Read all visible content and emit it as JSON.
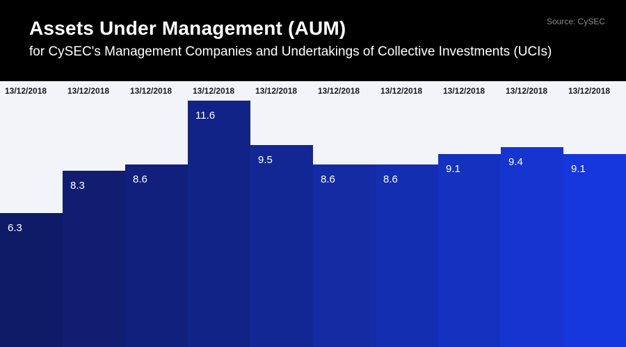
{
  "header": {
    "title": "Assets Under Management (AUM)",
    "subtitle": "for CySEC's Management Companies and Undertakings of Collective Investments (UCIs)",
    "source": "Source: CySEC"
  },
  "colors": {
    "header_bg": "#000000",
    "plot_bg": "#f3f4fa",
    "date_label": "#17171f",
    "value_label": "#ffffff"
  },
  "chart_data": {
    "type": "bar",
    "title": "Assets Under Management (AUM)",
    "subtitle": "for CySEC's Management Companies and Undertakings of Collective Investments (UCIs)",
    "source": "Source: CySEC",
    "categories": [
      "13/12/2018",
      "13/12/2018",
      "13/12/2018",
      "13/12/2018",
      "13/12/2018",
      "13/12/2018",
      "13/12/2018",
      "13/12/2018",
      "13/12/2018",
      "13/12/2018"
    ],
    "values": [
      6.3,
      8.3,
      8.6,
      11.6,
      9.5,
      8.6,
      8.6,
      9.1,
      9.4,
      9.1
    ],
    "bar_colors": [
      "#0f1b66",
      "#101d71",
      "#11207c",
      "#122388",
      "#132794",
      "#142ba3",
      "#142eb1",
      "#1531c0",
      "#1634cf",
      "#1737de"
    ],
    "xlabel": "",
    "ylabel": "",
    "ylim": [
      0,
      11.6
    ],
    "grid": false,
    "legend": "none",
    "value_labels_inside_bar": true,
    "category_labels_position": "top"
  }
}
